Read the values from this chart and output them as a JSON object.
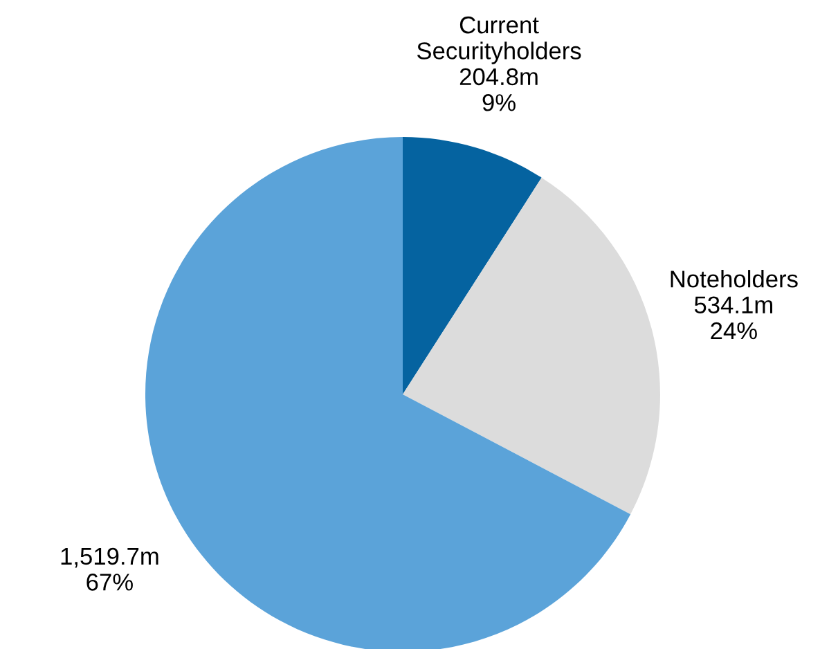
{
  "chart_data": {
    "type": "pie",
    "categories": [
      "Current\nSecurityholders",
      "Noteholders",
      null
    ],
    "values": [
      204.8,
      534.1,
      1519.7
    ],
    "value_labels": [
      "204.8m",
      "534.1m",
      "1,519.7m"
    ],
    "annotations": [
      "9%",
      "24%",
      "67%"
    ],
    "colors": [
      "#0563a0",
      "#dcdcdc",
      "#5ba3d9"
    ],
    "legend": false
  }
}
